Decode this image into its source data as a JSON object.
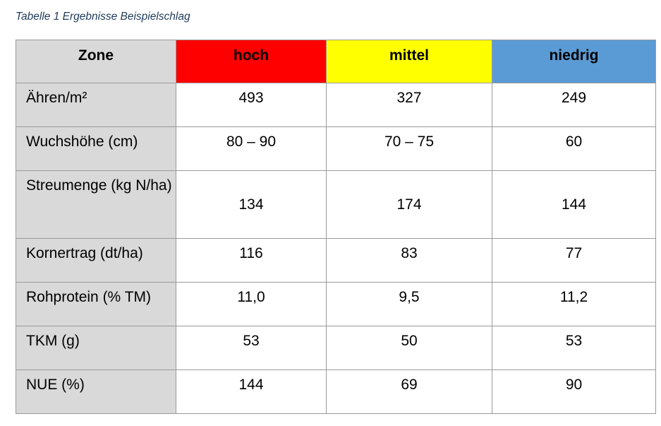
{
  "caption": "Tabelle 1 Ergebnisse Beispielschlag",
  "colors": {
    "hoch": "#ff0000",
    "mittel": "#ffff00",
    "niedrig": "#5b9bd5",
    "label_bg": "#d9d9d9"
  },
  "table": {
    "headers": [
      "Zone",
      "hoch",
      "mittel",
      "niedrig"
    ],
    "rows": [
      {
        "label": "Ähren/m²",
        "values": [
          "493",
          "327",
          "249"
        ]
      },
      {
        "label": "Wuchshöhe (cm)",
        "values": [
          "80 – 90",
          "70 – 75",
          "60"
        ]
      },
      {
        "label": "Streumenge (kg N/ha)",
        "values": [
          "134",
          "174",
          "144"
        ]
      },
      {
        "label": "Kornertrag (dt/ha)",
        "values": [
          "116",
          "83",
          "77"
        ]
      },
      {
        "label": "Rohprotein (% TM)",
        "values": [
          "11,0",
          "9,5",
          "11,2"
        ]
      },
      {
        "label": "TKM (g)",
        "values": [
          "53",
          "50",
          "53"
        ]
      },
      {
        "label": "NUE (%)",
        "values": [
          "144",
          "69",
          "90"
        ]
      }
    ]
  }
}
